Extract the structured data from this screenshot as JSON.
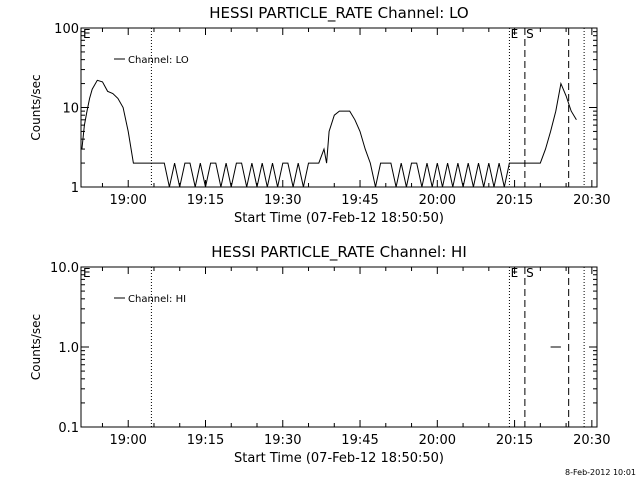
{
  "chart_data": [
    {
      "type": "line",
      "title": "HESSI PARTICLE_RATE Channel: LO",
      "xlabel": "Start Time (07-Feb-12 18:50:50)",
      "ylabel": "Counts/sec",
      "yscale": "log",
      "ylim": [
        1,
        100
      ],
      "yticks": [
        1,
        10,
        100
      ],
      "ytick_labels": [
        "1",
        "10",
        "100"
      ],
      "xlim": [
        "18:50:50",
        "20:31:00"
      ],
      "xticks": [
        "19:00",
        "19:15",
        "19:30",
        "19:45",
        "20:00",
        "20:15",
        "20:30"
      ],
      "legend": {
        "location": "top-left",
        "entries": [
          "Channel: LO"
        ]
      },
      "series": [
        {
          "name": "Channel: LO",
          "x": [
            "18:51:00",
            "18:51:30",
            "18:52:00",
            "18:52:30",
            "18:53:00",
            "18:54:00",
            "18:55:00",
            "18:56:00",
            "18:57:00",
            "18:58:00",
            "18:59:00",
            "19:00:00",
            "19:01:00",
            "19:02:00",
            "19:03:00",
            "19:03:30",
            "19:04:00",
            "19:05:00",
            "19:06:00",
            "19:07:00",
            "19:08:00",
            "19:09:00",
            "19:10:00",
            "19:11:00",
            "19:12:00",
            "19:13:00",
            "19:14:00",
            "19:15:00",
            "19:16:00",
            "19:17:00",
            "19:18:00",
            "19:19:00",
            "19:20:00",
            "19:21:00",
            "19:22:00",
            "19:23:00",
            "19:24:00",
            "19:25:00",
            "19:26:00",
            "19:27:00",
            "19:28:00",
            "19:29:00",
            "19:30:00",
            "19:31:00",
            "19:32:00",
            "19:33:00",
            "19:34:00",
            "19:35:00",
            "19:36:00",
            "19:37:00",
            "19:38:00",
            "19:38:30",
            "19:39:00",
            "19:40:00",
            "19:41:00",
            "19:42:00",
            "19:43:00",
            "19:44:00",
            "19:45:00",
            "19:46:00",
            "19:47:00",
            "19:48:00",
            "19:49:00",
            "19:50:00",
            "19:51:00",
            "19:52:00",
            "19:53:00",
            "19:54:00",
            "19:55:00",
            "19:56:00",
            "19:57:00",
            "19:58:00",
            "19:59:00",
            "20:00:00",
            "20:01:00",
            "20:02:00",
            "20:03:00",
            "20:04:00",
            "20:05:00",
            "20:06:00",
            "20:07:00",
            "20:08:00",
            "20:09:00",
            "20:10:00",
            "20:11:00",
            "20:12:00",
            "20:13:00",
            "20:14:00",
            "20:15:00",
            "20:16:00",
            "20:17:00",
            "20:18:00",
            "20:19:00",
            "20:20:00",
            "20:21:00",
            "20:22:00",
            "20:23:00",
            "20:24:00",
            "20:25:00",
            "20:26:00",
            "20:27:00"
          ],
          "y": [
            3,
            6,
            9,
            13,
            17,
            22,
            21,
            16,
            15,
            13,
            10,
            5,
            2,
            2,
            2,
            2,
            2,
            2,
            2,
            2,
            1,
            2,
            1,
            2,
            2,
            1,
            2,
            1,
            2,
            2,
            1,
            2,
            1,
            2,
            2,
            1,
            2,
            1,
            2,
            1,
            2,
            1,
            2,
            2,
            1,
            2,
            1,
            2,
            2,
            2,
            3,
            2,
            5,
            8,
            9,
            9,
            9,
            7,
            5,
            3,
            2,
            1,
            2,
            2,
            2,
            1,
            2,
            1,
            2,
            2,
            1,
            2,
            1,
            2,
            1,
            2,
            1,
            2,
            1,
            2,
            1,
            2,
            1,
            2,
            1,
            2,
            1,
            2,
            2,
            2,
            2,
            2,
            2,
            2,
            3,
            5,
            9,
            20,
            14,
            9,
            7
          ]
        }
      ],
      "vlines": [
        {
          "x": "19:04:30",
          "style": "dotted"
        },
        {
          "x": "20:14:00",
          "style": "dotted",
          "label": "E"
        },
        {
          "x": "20:17:00",
          "style": "dashed",
          "label": "S"
        },
        {
          "x": "20:25:30",
          "style": "dashed"
        },
        {
          "x": "20:28:30",
          "style": "dotted"
        }
      ],
      "edge_labels": [
        "E"
      ],
      "grid": false
    },
    {
      "type": "line",
      "title": "HESSI PARTICLE_RATE Channel: HI",
      "xlabel": "Start Time (07-Feb-12 18:50:50)",
      "ylabel": "Counts/sec",
      "yscale": "log",
      "ylim": [
        0.1,
        10
      ],
      "yticks": [
        0.1,
        1,
        10
      ],
      "ytick_labels": [
        "0.1",
        "1.0",
        "10.0"
      ],
      "xlim": [
        "18:50:50",
        "20:31:00"
      ],
      "xticks": [
        "19:00",
        "19:15",
        "19:30",
        "19:45",
        "20:00",
        "20:15",
        "20:30"
      ],
      "legend": {
        "location": "top-left",
        "entries": [
          "Channel: HI"
        ]
      },
      "series": [
        {
          "name": "Channel: HI",
          "x": [
            "20:22:00",
            "20:24:00"
          ],
          "y": [
            1,
            1
          ]
        }
      ],
      "vlines": [
        {
          "x": "19:04:30",
          "style": "dotted"
        },
        {
          "x": "20:14:00",
          "style": "dotted",
          "label": "E"
        },
        {
          "x": "20:17:00",
          "style": "dashed",
          "label": "S"
        },
        {
          "x": "20:25:30",
          "style": "dashed"
        },
        {
          "x": "20:28:30",
          "style": "dotted"
        }
      ],
      "edge_labels": [
        "E"
      ],
      "grid": false
    }
  ],
  "timestamp": "8-Feb-2012 10:01"
}
